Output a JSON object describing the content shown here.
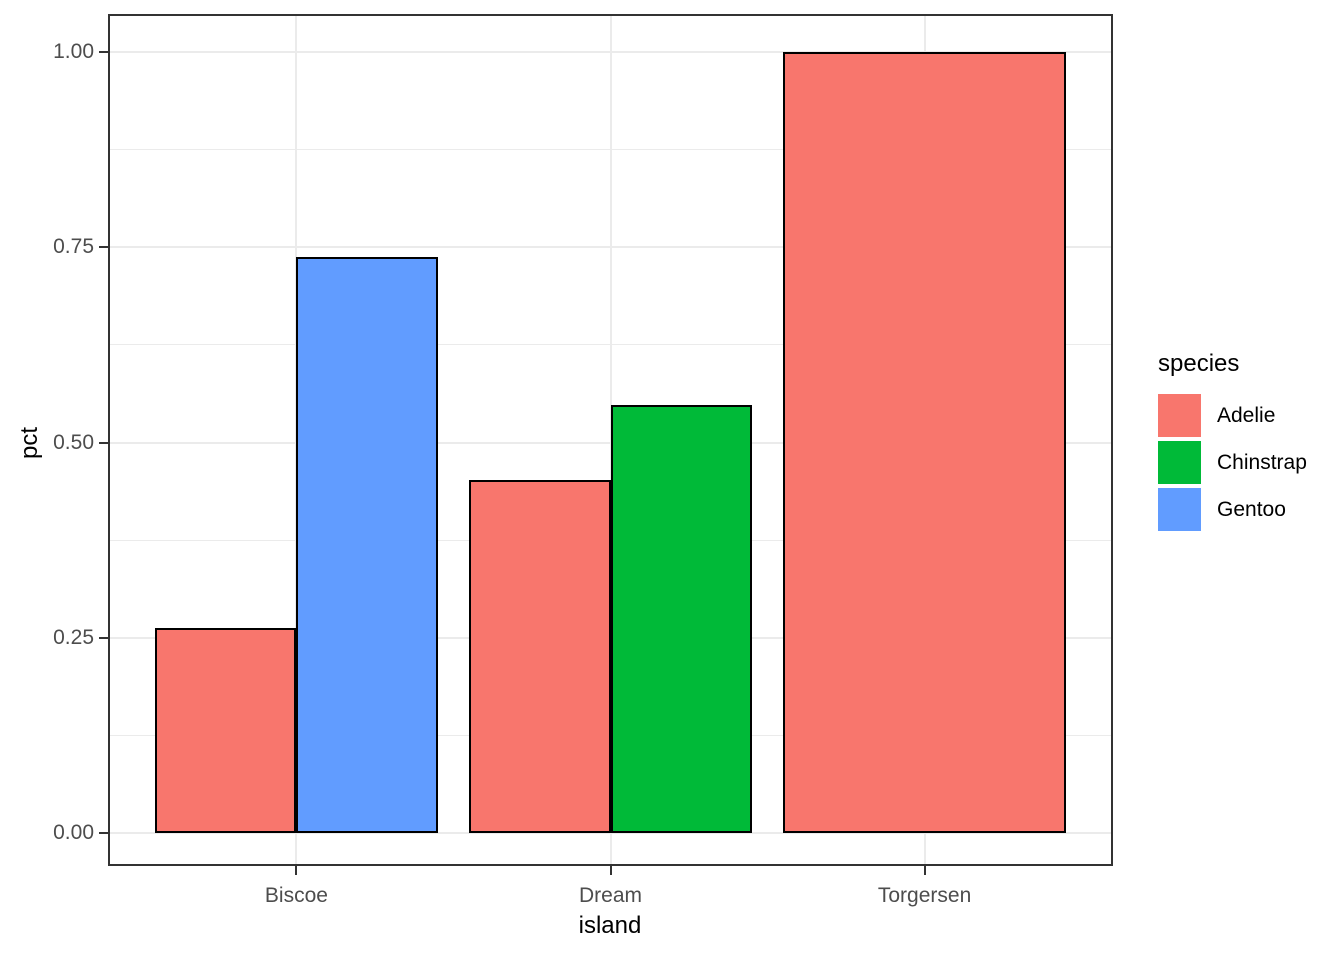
{
  "chart_data": {
    "type": "bar",
    "title": "",
    "xlabel": "island",
    "ylabel": "pct",
    "categories": [
      "Biscoe",
      "Dream",
      "Torgersen"
    ],
    "series": [
      {
        "name": "Adelie",
        "color": "#F8766D",
        "values": [
          0.262,
          0.452,
          1.0
        ]
      },
      {
        "name": "Chinstrap",
        "color": "#00BA38",
        "values": [
          null,
          0.548,
          null
        ]
      },
      {
        "name": "Gentoo",
        "color": "#619CFF",
        "values": [
          0.738,
          null,
          null
        ]
      }
    ],
    "ylim": [
      0,
      1
    ],
    "y_major_ticks": [
      0,
      0.25,
      0.5,
      0.75,
      1.0
    ],
    "y_tick_labels": [
      "0.00",
      "0.25",
      "0.50",
      "0.75",
      "1.00"
    ],
    "y_minor_ticks": [
      0.125,
      0.375,
      0.625,
      0.875
    ],
    "grid": true,
    "bar_grouping": "dodge",
    "legend": {
      "title": "species",
      "position": "right",
      "entries": [
        {
          "label": "Adelie",
          "color": "#F8766D"
        },
        {
          "label": "Chinstrap",
          "color": "#00BA38"
        },
        {
          "label": "Gentoo",
          "color": "#619CFF"
        }
      ]
    },
    "style": {
      "background": "#FFFFFF",
      "panel_background": "#FFFFFF",
      "panel_border": "#333333",
      "gridline_color": "#EBEBEB",
      "tick_color": "#333333",
      "tick_label_color": "#4D4D4D",
      "axis_title_color": "#000000",
      "bar_outline_color": "#000000"
    }
  }
}
